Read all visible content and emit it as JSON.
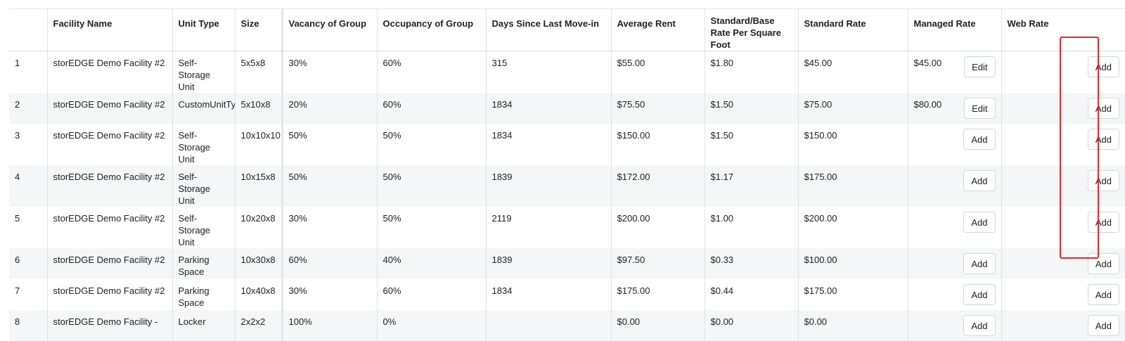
{
  "table": {
    "headers": {
      "index": "",
      "facility": "Facility Name",
      "unit_type": "Unit Type",
      "size": "Size",
      "vacancy": "Vacancy of Group",
      "occupancy": "Occupancy of Group",
      "days": "Days Since Last Move-in",
      "avg_rent": "Average Rent",
      "base_rate_sqft": "Standard/Base Rate Per Square Foot",
      "std_rate": "Standard Rate",
      "managed_rate": "Managed Rate",
      "web_rate": "Web Rate"
    },
    "rows": [
      {
        "index": "1",
        "facility": "storEDGE Demo Facility #2",
        "unit_type": "Self-Storage Unit",
        "size": "5x5x8",
        "vacancy": "30%",
        "occupancy": "60%",
        "days": "315",
        "avg_rent": "$55.00",
        "base_rate_sqft": "$1.80",
        "std_rate": "$45.00",
        "managed_value": "$45.00",
        "managed_btn": "Edit",
        "web_btn": "Add"
      },
      {
        "index": "2",
        "facility": "storEDGE Demo Facility #2",
        "unit_type": "CustomUnitTyp",
        "size": "5x10x8",
        "vacancy": "20%",
        "occupancy": "60%",
        "days": "1834",
        "avg_rent": "$75.50",
        "base_rate_sqft": "$1.50",
        "std_rate": "$75.00",
        "managed_value": "$80.00",
        "managed_btn": "Edit",
        "web_btn": "Add"
      },
      {
        "index": "3",
        "facility": "storEDGE Demo Facility #2",
        "unit_type": "Self-Storage Unit",
        "size": "10x10x10",
        "vacancy": "50%",
        "occupancy": "50%",
        "days": "1834",
        "avg_rent": "$150.00",
        "base_rate_sqft": "$1.50",
        "std_rate": "$150.00",
        "managed_value": "",
        "managed_btn": "Add",
        "web_btn": "Add"
      },
      {
        "index": "4",
        "facility": "storEDGE Demo Facility #2",
        "unit_type": "Self-Storage Unit",
        "size": "10x15x8",
        "vacancy": "50%",
        "occupancy": "50%",
        "days": "1839",
        "avg_rent": "$172.00",
        "base_rate_sqft": "$1.17",
        "std_rate": "$175.00",
        "managed_value": "",
        "managed_btn": "Add",
        "web_btn": "Add"
      },
      {
        "index": "5",
        "facility": "storEDGE Demo Facility #2",
        "unit_type": "Self-Storage Unit",
        "size": "10x20x8",
        "vacancy": "30%",
        "occupancy": "50%",
        "days": "2119",
        "avg_rent": "$200.00",
        "base_rate_sqft": "$1.00",
        "std_rate": "$200.00",
        "managed_value": "",
        "managed_btn": "Add",
        "web_btn": "Add"
      },
      {
        "index": "6",
        "facility": "storEDGE Demo Facility #2",
        "unit_type": "Parking Space",
        "size": "10x30x8",
        "vacancy": "60%",
        "occupancy": "40%",
        "days": "1839",
        "avg_rent": "$97.50",
        "base_rate_sqft": "$0.33",
        "std_rate": "$100.00",
        "managed_value": "",
        "managed_btn": "Add",
        "web_btn": "Add"
      },
      {
        "index": "7",
        "facility": "storEDGE Demo Facility #2",
        "unit_type": "Parking Space",
        "size": "10x40x8",
        "vacancy": "30%",
        "occupancy": "60%",
        "days": "1834",
        "avg_rent": "$175.00",
        "base_rate_sqft": "$0.44",
        "std_rate": "$175.00",
        "managed_value": "",
        "managed_btn": "Add",
        "web_btn": "Add"
      },
      {
        "index": "8",
        "facility": "storEDGE Demo Facility -",
        "unit_type": "Locker",
        "size": "2x2x2",
        "vacancy": "100%",
        "occupancy": "0%",
        "days": "",
        "avg_rent": "$0.00",
        "base_rate_sqft": "$0.00",
        "std_rate": "$0.00",
        "managed_value": "",
        "managed_btn": "Add",
        "web_btn": "Add"
      }
    ]
  },
  "colors": {
    "highlight": "#e8262b",
    "row_alt": "#f5f6f7",
    "border": "#dfe3e6"
  }
}
